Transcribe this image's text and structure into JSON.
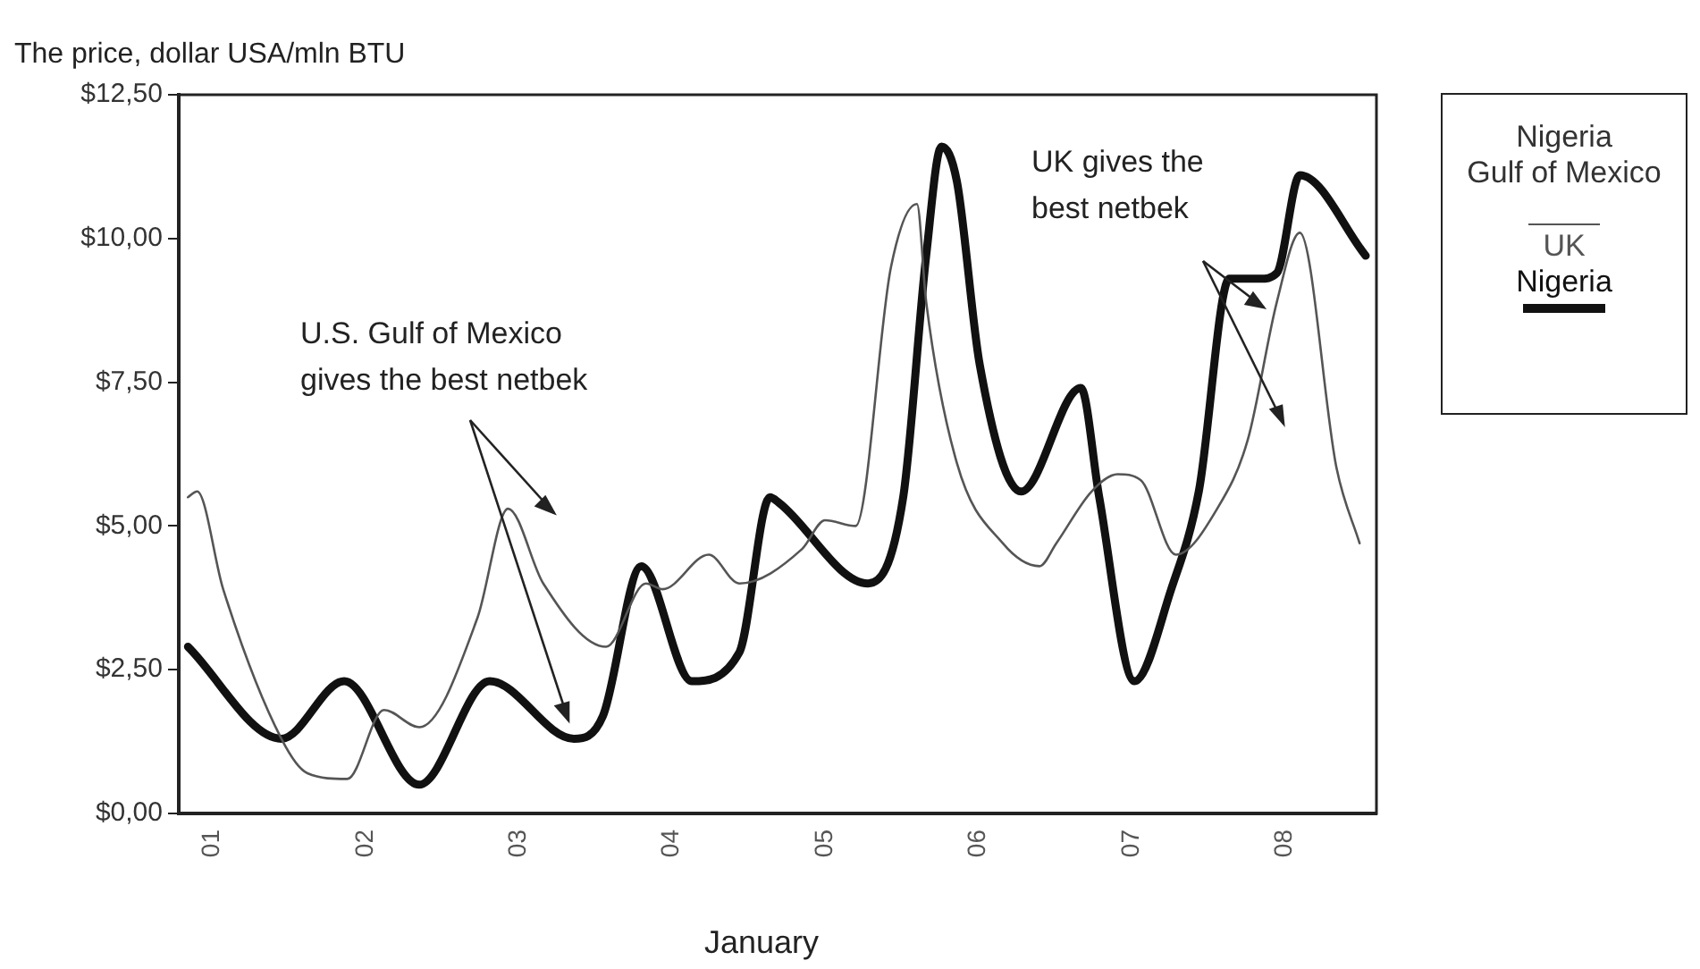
{
  "chart_data": {
    "type": "line",
    "ylabel": "The price, dollar USA/mln BTU",
    "xlabel": "January",
    "legend_title": "Nigeria Gulf of Mexico",
    "legend": "right",
    "grid": false,
    "marker": "none",
    "annotations": [
      "U.S. Gulf of Mexico gives the best netbek",
      "UK gives the best netbek"
    ],
    "xlim": [
      2000.78,
      2008.6
    ],
    "xticks": [
      {
        "value": 2001,
        "label": "01"
      },
      {
        "value": 2002,
        "label": "02"
      },
      {
        "value": 2003,
        "label": "03"
      },
      {
        "value": 2004,
        "label": "04"
      },
      {
        "value": 2005,
        "label": "05"
      },
      {
        "value": 2006,
        "label": "06"
      },
      {
        "value": 2007,
        "label": "07"
      },
      {
        "value": 2008,
        "label": "08"
      }
    ],
    "ylim": [
      0,
      12.5
    ],
    "yticks": [
      {
        "value": 0,
        "label": "$0,00"
      },
      {
        "value": 2.5,
        "label": "$2,50"
      },
      {
        "value": 5,
        "label": "$5,00"
      },
      {
        "value": 7.5,
        "label": "$7,50"
      },
      {
        "value": 10,
        "label": "$10,00"
      },
      {
        "value": 12.5,
        "label": "$12,50"
      }
    ],
    "series": [
      {
        "name": "UK",
        "color": "#555555",
        "x": [
          2000.84,
          2000.9,
          2001.07,
          2001.45,
          2001.62,
          2001.88,
          2002.12,
          2002.35,
          2002.73,
          2002.93,
          2003.16,
          2003.57,
          2003.83,
          2003.94,
          2004.24,
          2004.44,
          2004.85,
          2005.0,
          2005.2,
          2005.43,
          2005.6,
          2005.66,
          2005.86,
          2006.16,
          2006.4,
          2006.51,
          2006.74,
          2006.91,
          2007.06,
          2007.29,
          2007.56,
          2007.76,
          2007.95,
          2008.1,
          2008.34,
          2008.49
        ],
        "values": [
          5.5,
          5.6,
          3.9,
          1.3,
          0.7,
          0.6,
          1.8,
          1.5,
          3.4,
          5.3,
          4.0,
          2.9,
          4.0,
          3.9,
          4.5,
          4.0,
          4.6,
          5.1,
          5.0,
          9.5,
          10.6,
          8.9,
          6.1,
          4.7,
          4.3,
          4.7,
          5.6,
          5.9,
          5.8,
          4.5,
          5.3,
          6.5,
          8.9,
          10.1,
          6.0,
          4.7
        ]
      },
      {
        "name": "Nigeria",
        "color": "#111111",
        "x": [
          2000.84,
          2001.45,
          2001.86,
          2002.35,
          2002.81,
          2003.36,
          2003.55,
          2003.8,
          2004.13,
          2004.44,
          2004.64,
          2004.7,
          2005.28,
          2005.51,
          2005.66,
          2005.76,
          2005.86,
          2006.01,
          2006.28,
          2006.67,
          2006.79,
          2007.02,
          2007.26,
          2007.44,
          2007.64,
          2007.84,
          2007.95,
          2008.1,
          2008.53
        ],
        "values": [
          2.9,
          1.3,
          2.3,
          0.5,
          2.3,
          1.3,
          1.7,
          4.3,
          2.3,
          2.8,
          5.5,
          5.4,
          4.0,
          5.5,
          9.7,
          11.6,
          11.0,
          7.8,
          5.6,
          7.4,
          5.5,
          2.3,
          3.9,
          5.6,
          9.3,
          9.3,
          9.4,
          11.1,
          9.7
        ]
      }
    ]
  }
}
